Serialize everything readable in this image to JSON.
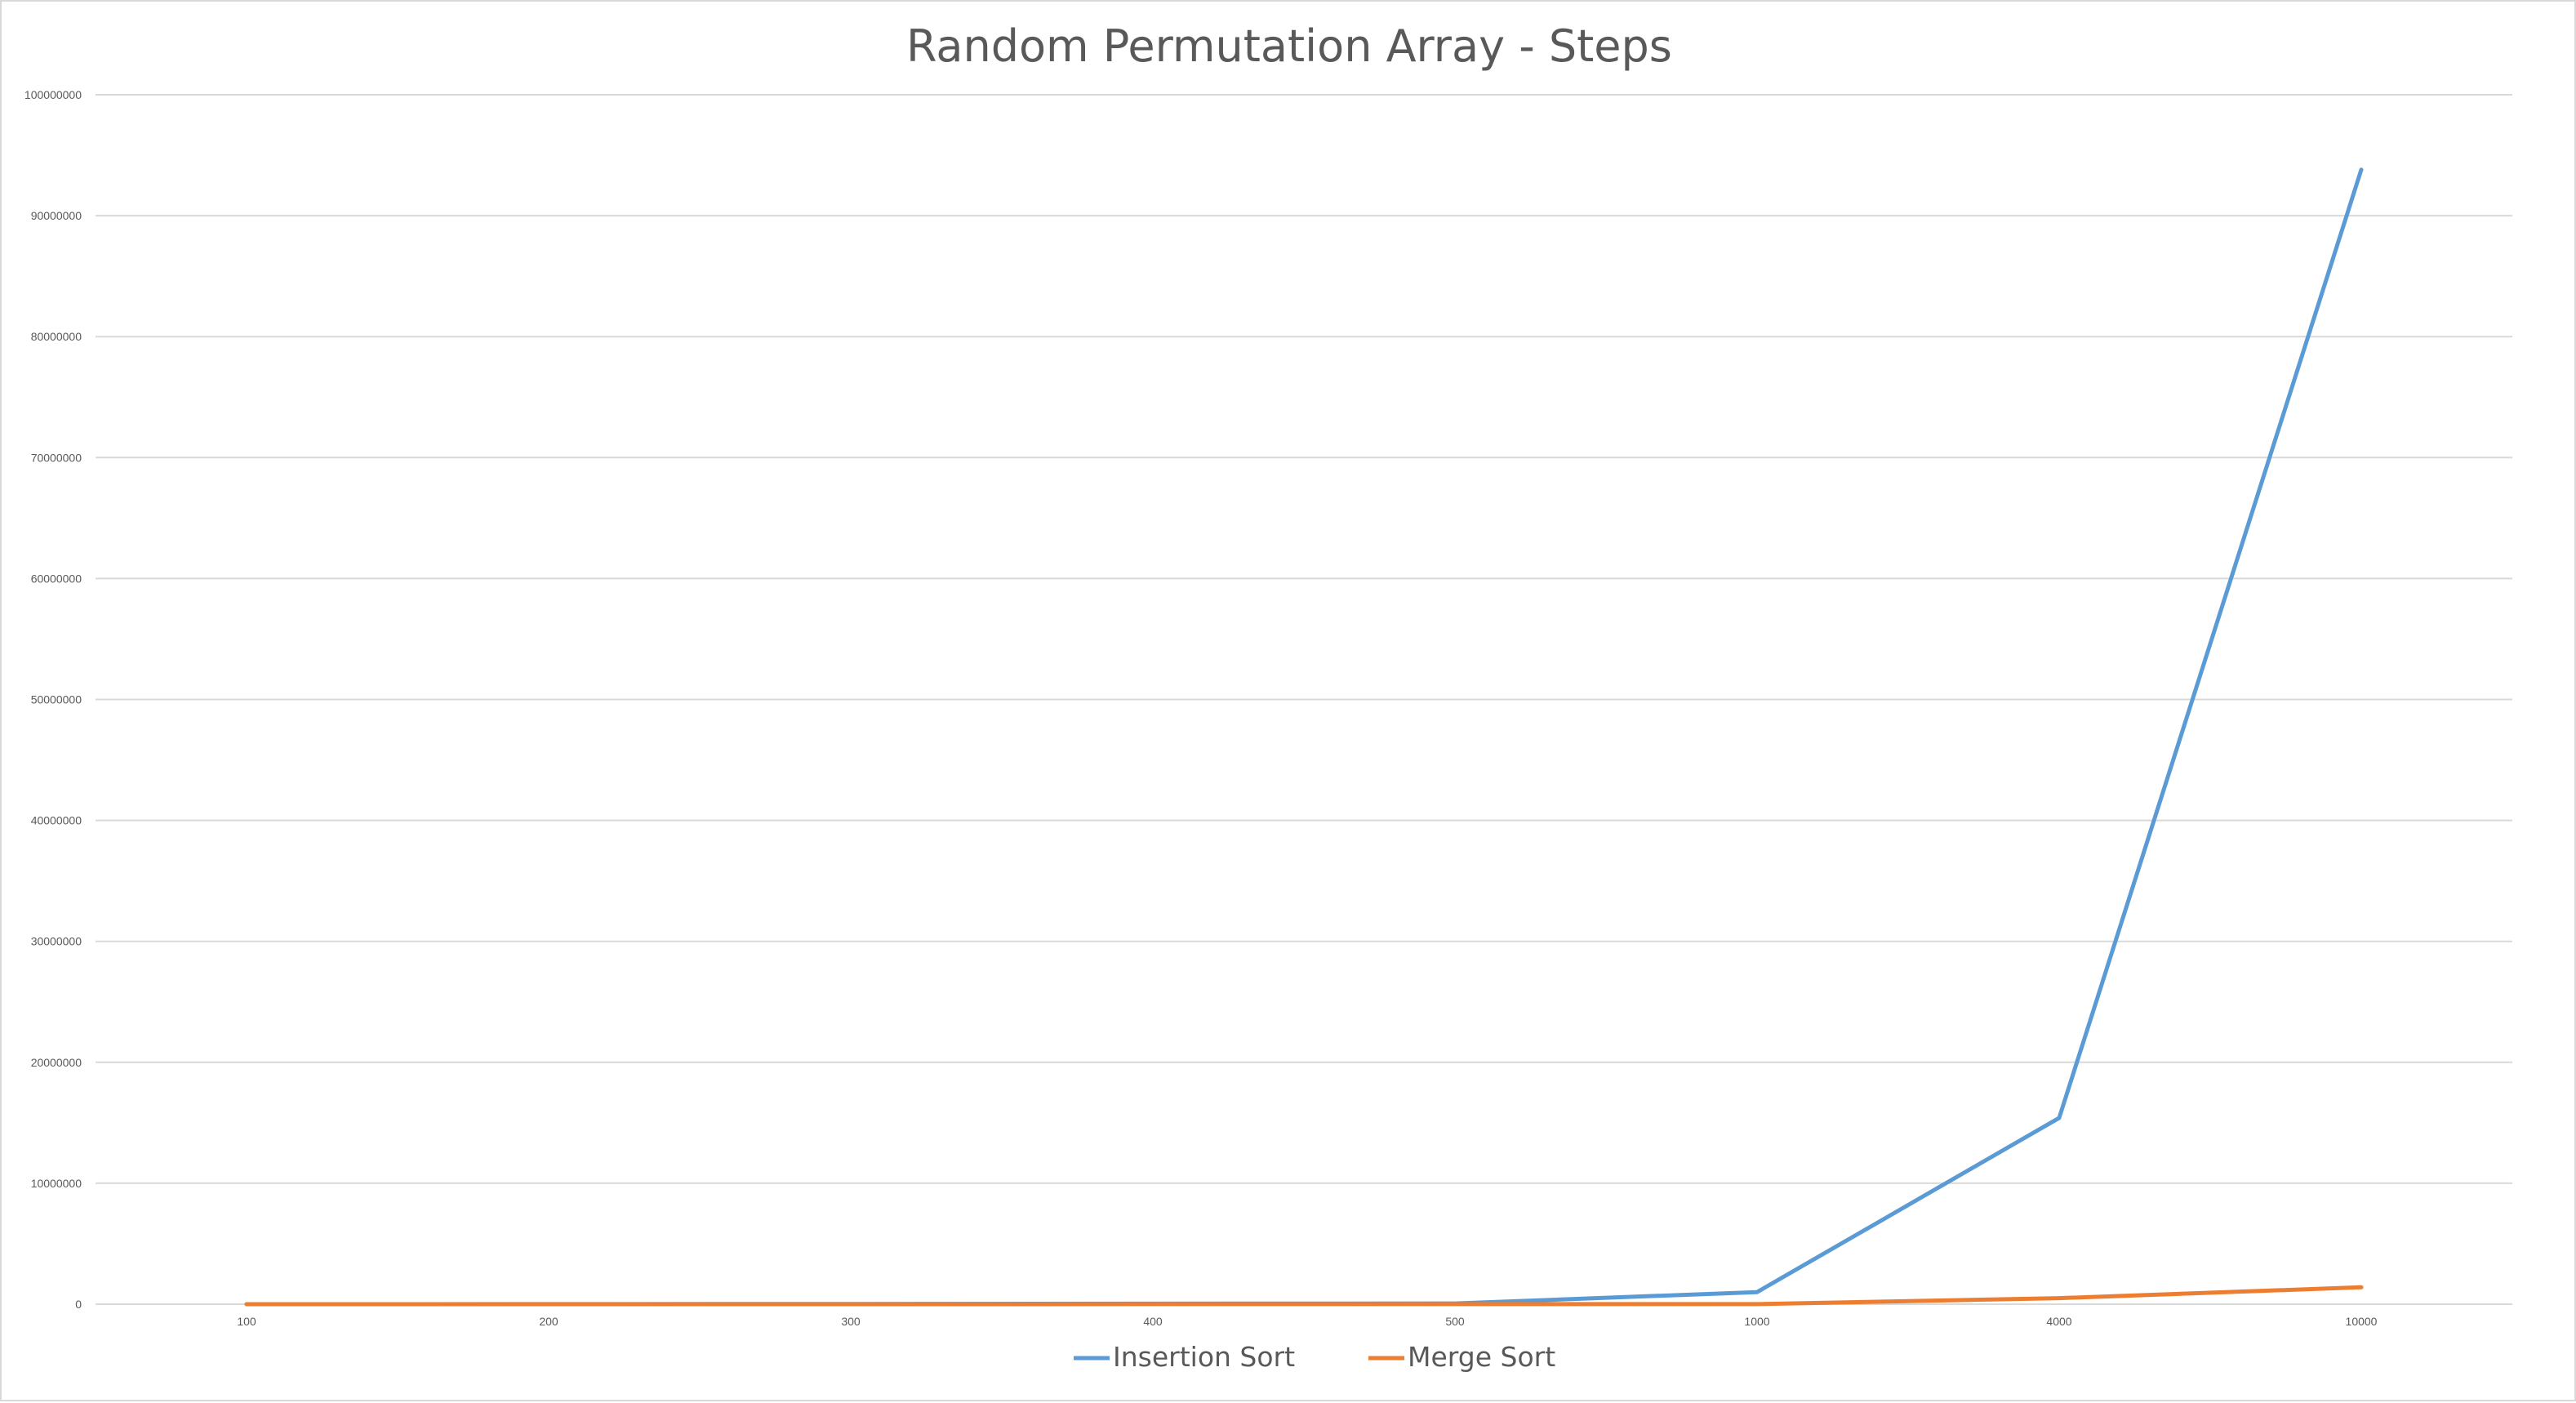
{
  "chart_data": {
    "type": "line",
    "title": "Random Permutation Array - Steps",
    "xlabel": "",
    "ylabel": "",
    "categories": [
      "100",
      "200",
      "300",
      "400",
      "500",
      "1000",
      "4000",
      "10000"
    ],
    "y_ticks": [
      "0",
      "10000000",
      "20000000",
      "30000000",
      "40000000",
      "50000000",
      "60000000",
      "70000000",
      "80000000",
      "90000000",
      "100000000"
    ],
    "ylim": [
      0,
      100000000
    ],
    "grid": true,
    "legend_position": "bottom",
    "series": [
      {
        "name": "Insertion Sort",
        "color": "#5b9bd5",
        "values": [
          2500,
          10000,
          22500,
          40000,
          62500,
          1000000,
          15400000,
          93800000
        ]
      },
      {
        "name": "Merge Sort",
        "color": "#ed7d31",
        "values": [
          700,
          1600,
          2500,
          3500,
          4400,
          10000,
          500000,
          1400000
        ]
      }
    ]
  }
}
